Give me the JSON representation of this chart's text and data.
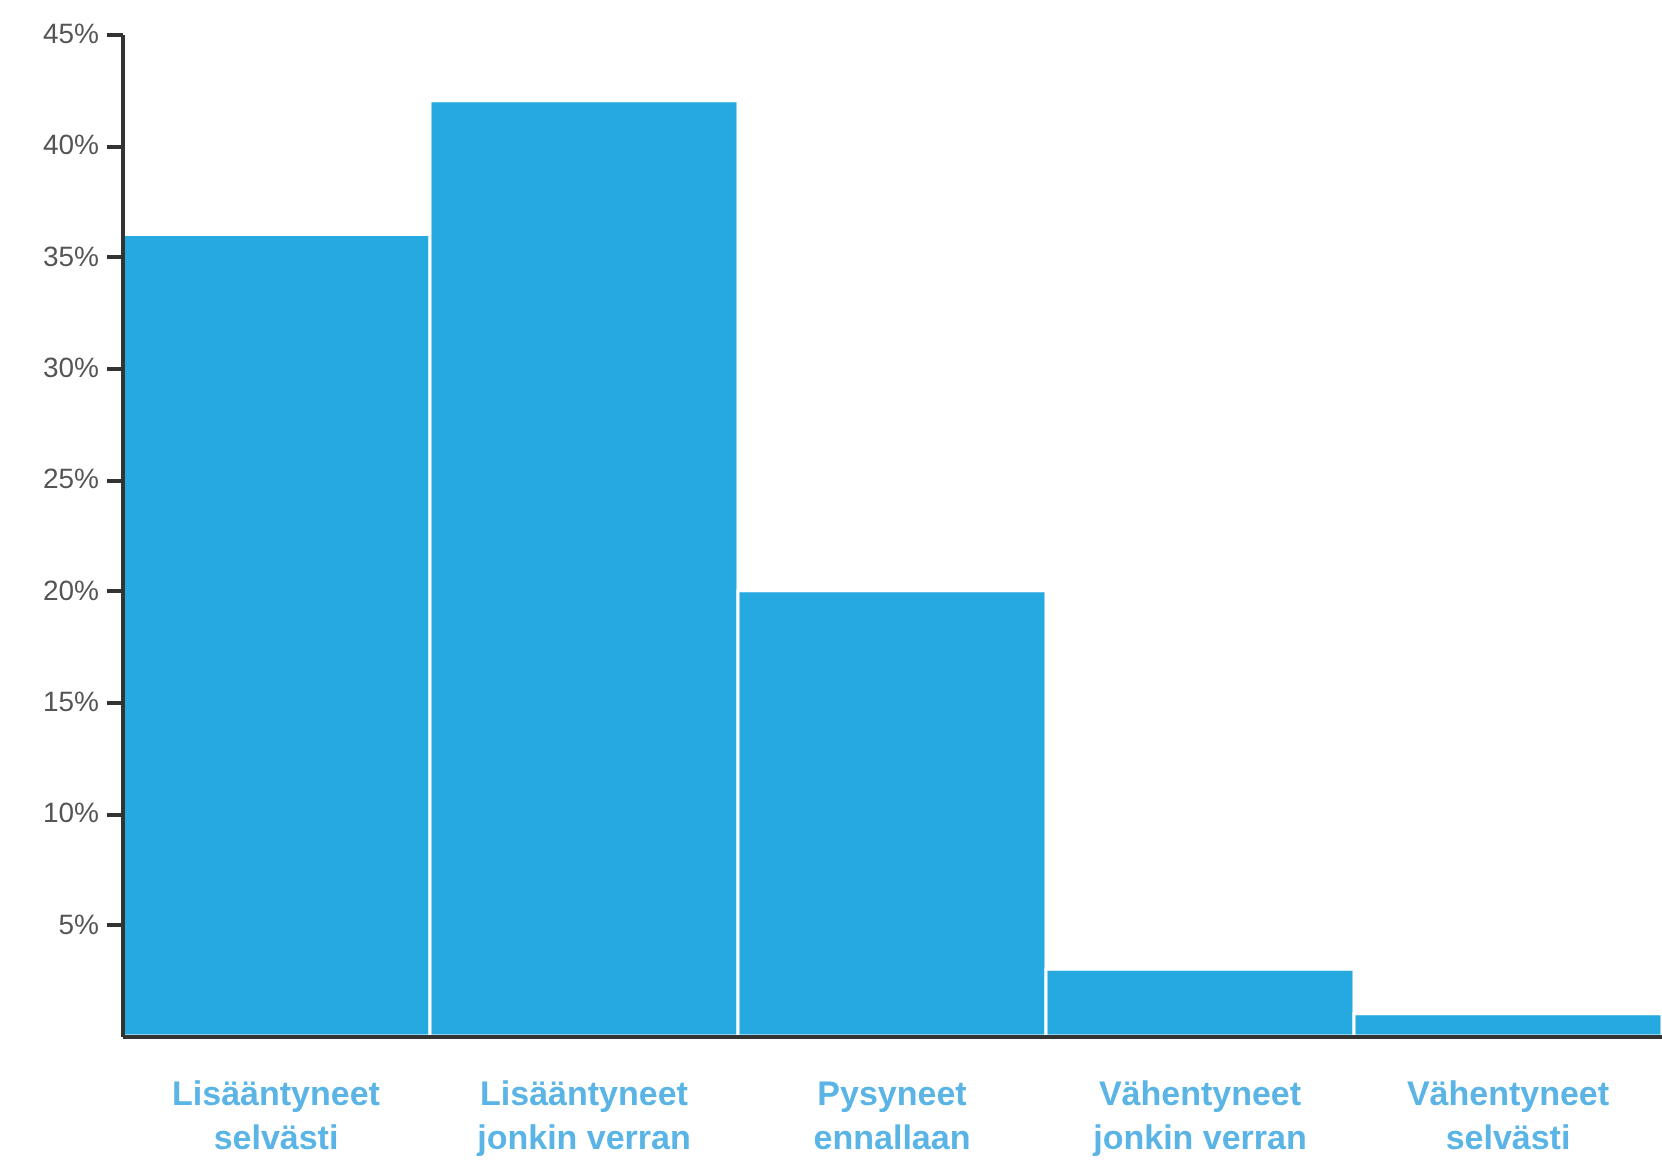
{
  "chart_data": {
    "type": "bar",
    "categories": [
      "Lisääntyneet selvästi",
      "Lisääntyneet jonkin verran",
      "Pysyneet ennallaan",
      "Vähentyneet jonkin verran",
      "Vähentyneet selvästi"
    ],
    "values": [
      36,
      42,
      20,
      3,
      1
    ],
    "color": "#25a9e0",
    "ylim": [
      0,
      45
    ],
    "yticks": [
      {
        "value": 5,
        "label": "5%"
      },
      {
        "value": 10,
        "label": "10%"
      },
      {
        "value": 15,
        "label": "15%"
      },
      {
        "value": 20,
        "label": "20%"
      },
      {
        "value": 25,
        "label": "25%"
      },
      {
        "value": 30,
        "label": "30%"
      },
      {
        "value": 35,
        "label": "35%"
      },
      {
        "value": 40,
        "label": "40%"
      },
      {
        "value": 45,
        "label": "45%"
      }
    ],
    "grid": false
  }
}
